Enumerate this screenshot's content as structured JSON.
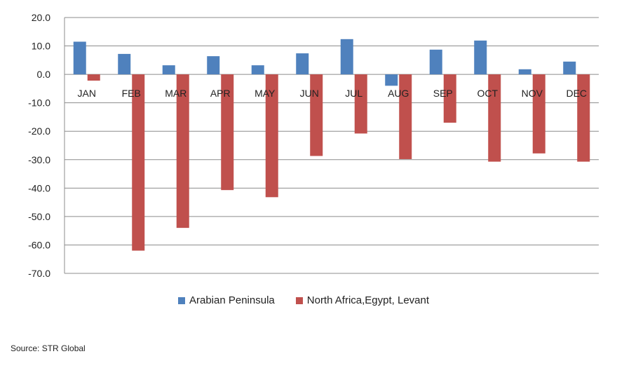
{
  "chart_data": {
    "type": "bar",
    "categories": [
      "JAN",
      "FEB",
      "MAR",
      "APR",
      "MAY",
      "JUN",
      "JUL",
      "AUG",
      "SEP",
      "OCT",
      "NOV",
      "DEC"
    ],
    "series": [
      {
        "name": "Arabian Peninsula",
        "color": "#4F81BD",
        "values": [
          11.5,
          7.2,
          3.2,
          6.4,
          3.2,
          7.4,
          12.4,
          -4.0,
          8.7,
          11.9,
          1.8,
          4.5
        ]
      },
      {
        "name": "North Africa,Egypt, Levant",
        "color": "#C0504D",
        "values": [
          -2.2,
          -62.0,
          -54.0,
          -40.7,
          -43.2,
          -28.7,
          -20.8,
          -29.8,
          -17.0,
          -30.7,
          -27.8,
          -30.7
        ]
      }
    ],
    "ylim": [
      -70.0,
      20.0
    ],
    "yticks": [
      "20.0",
      "10.0",
      "0.0",
      "-10.0",
      "-20.0",
      "-30.0",
      "-40.0",
      "-50.0",
      "-60.0",
      "-70.0"
    ],
    "grid": true,
    "legend_position": "bottom",
    "xlabel": "",
    "ylabel": ""
  },
  "source": "Source: STR Global"
}
